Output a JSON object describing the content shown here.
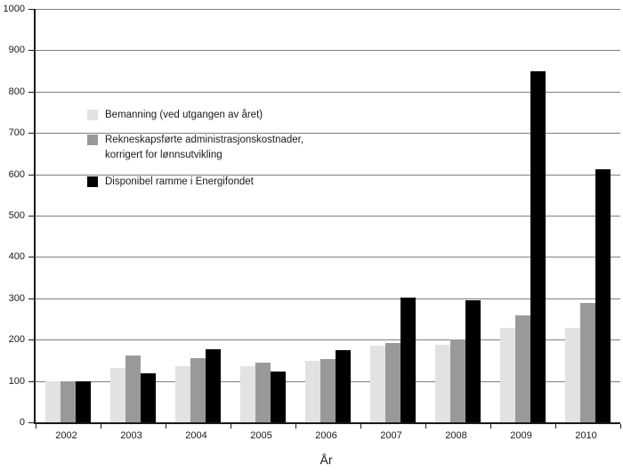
{
  "chart_data": {
    "type": "bar",
    "title": "",
    "xlabel": "År",
    "ylabel": "",
    "ylim": [
      0,
      1000
    ],
    "ytick_step": 100,
    "grid": true,
    "legend_position": "inside-upper-left",
    "categories": [
      "2002",
      "2003",
      "2004",
      "2005",
      "2006",
      "2007",
      "2008",
      "2009",
      "2010"
    ],
    "series": [
      {
        "name": "Bemanning (ved utgangen av året)",
        "color": "#e2e2e2",
        "values": [
          100,
          131,
          135,
          135,
          148,
          185,
          187,
          229,
          229
        ]
      },
      {
        "name": "Rekneskapsførte administrasjonskostnader,\nkorrigert for lønnsutvikling",
        "color": "#999999",
        "values": [
          100,
          161,
          156,
          145,
          154,
          192,
          201,
          259,
          289
        ]
      },
      {
        "name": "Disponibel ramme i Energifondet",
        "color": "#000000",
        "values": [
          100,
          118,
          177,
          122,
          174,
          301,
          296,
          850,
          611
        ]
      }
    ]
  },
  "colors": {
    "axis": "#1a1a1a",
    "gridline": "#7f7f7f",
    "text": "#1a1a1a"
  }
}
